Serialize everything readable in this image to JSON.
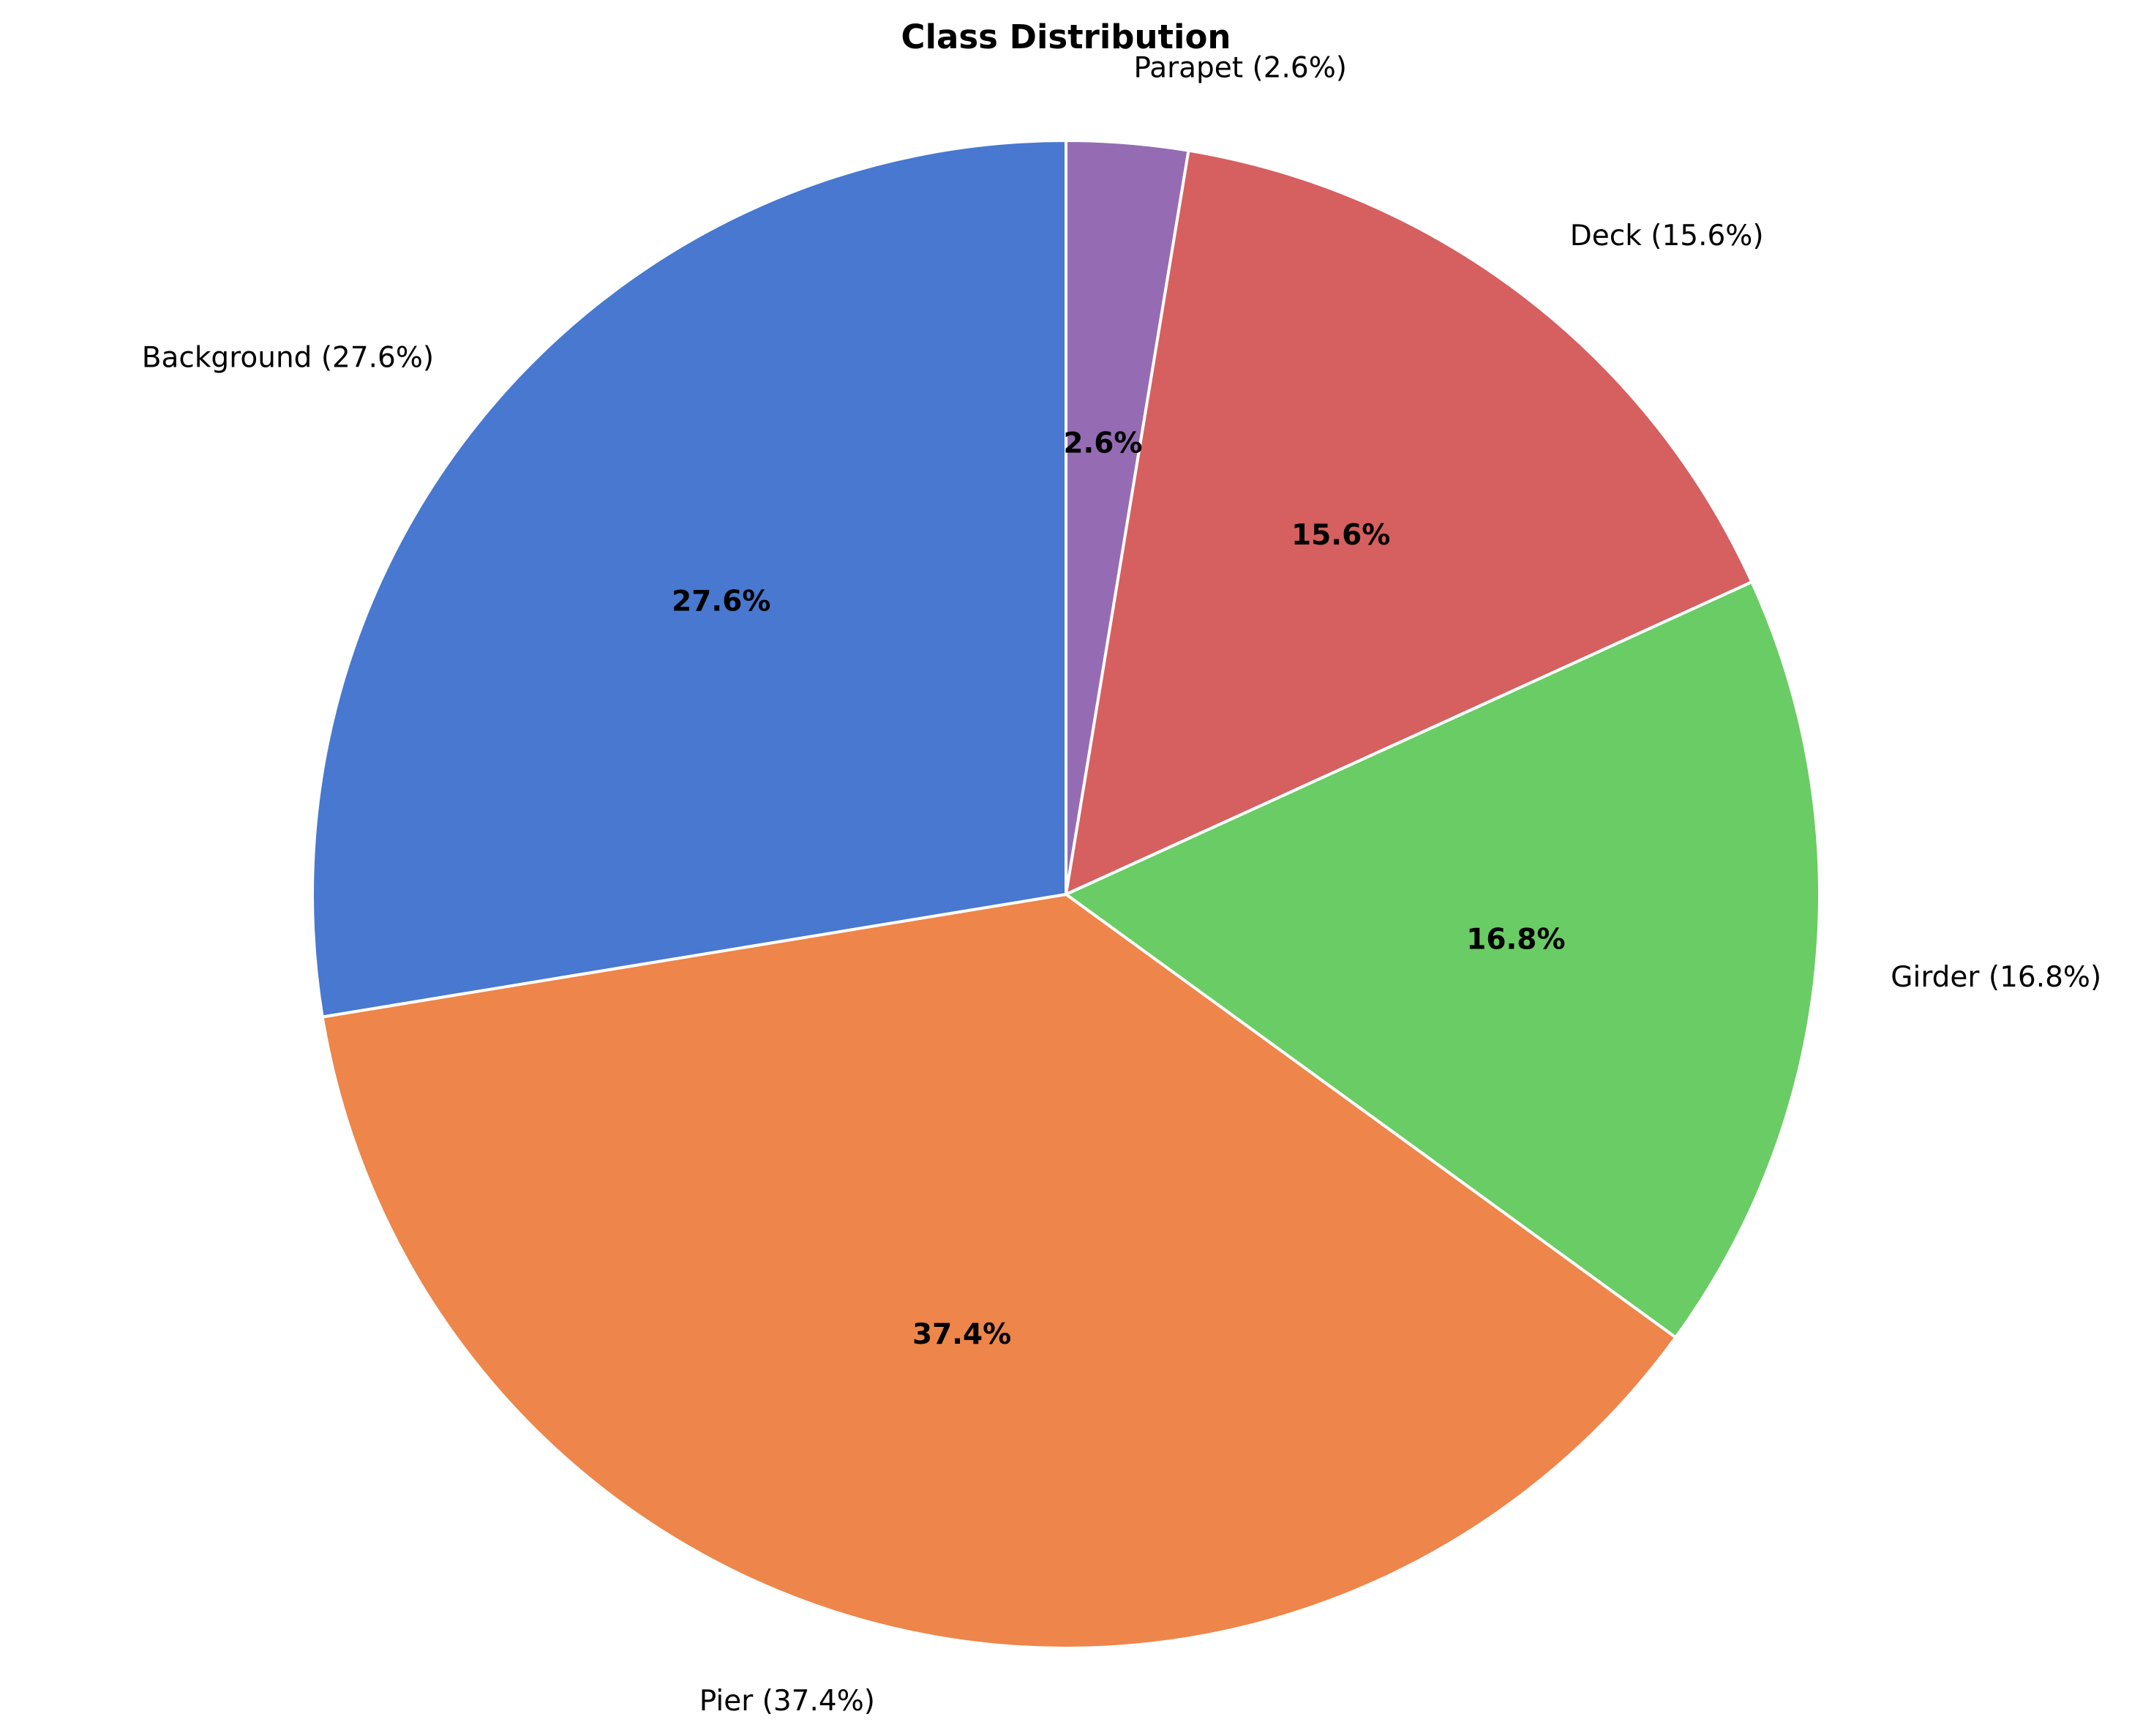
{
  "chart_data": {
    "type": "pie",
    "title": "Class Distribution",
    "start_angle_deg": 90,
    "direction": "clockwise",
    "slices": [
      {
        "label": "Parapet (2.6%)",
        "value": 2.6,
        "pct_label": "2.6%",
        "color": "#956cb4"
      },
      {
        "label": "Deck (15.6%)",
        "value": 15.6,
        "pct_label": "15.6%",
        "color": "#d65f5f"
      },
      {
        "label": "Girder (16.8%)",
        "value": 16.8,
        "pct_label": "16.8%",
        "color": "#6acc64"
      },
      {
        "label": "Pier (37.4%)",
        "value": 37.4,
        "pct_label": "37.4%",
        "color": "#ee854a"
      },
      {
        "label": "Background (27.6%)",
        "value": 27.6,
        "pct_label": "27.6%",
        "color": "#4878d0"
      }
    ]
  }
}
